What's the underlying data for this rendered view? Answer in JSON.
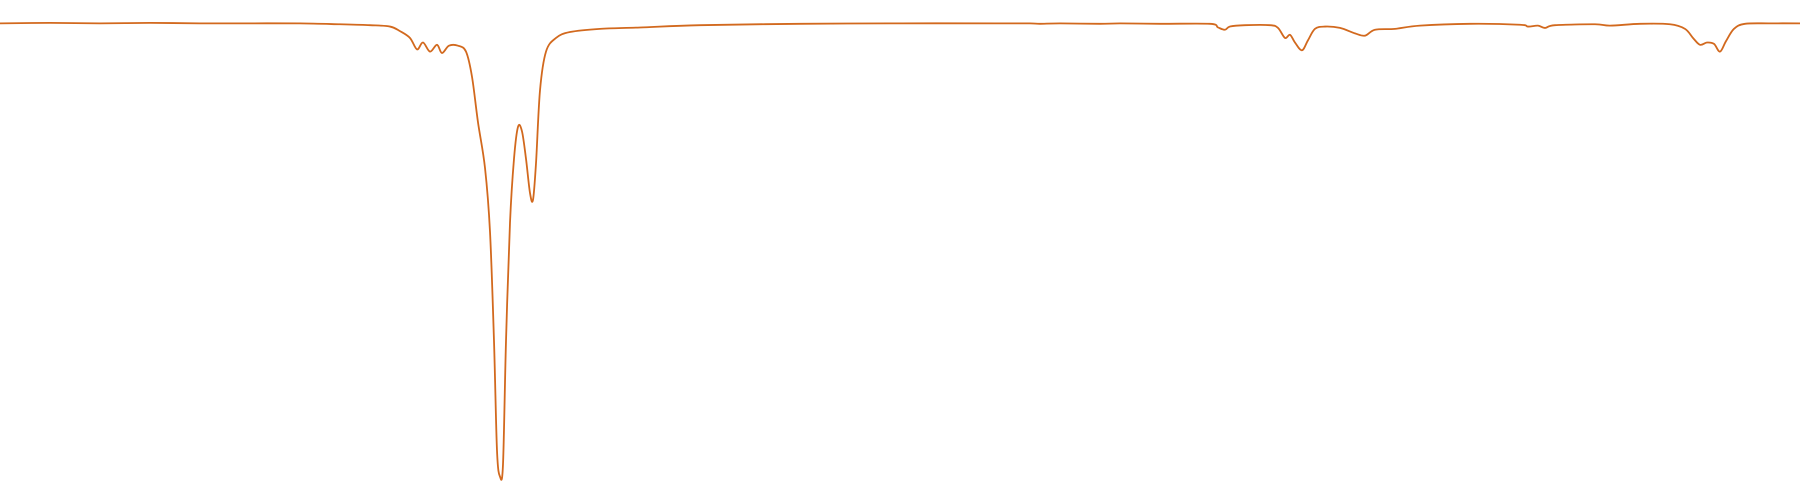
{
  "chart_data": {
    "type": "line",
    "title": "",
    "xlabel": "",
    "ylabel": "",
    "grid": false,
    "legend": "none",
    "xlim": [
      0,
      1800
    ],
    "ylim": [
      0,
      1.0
    ],
    "series": [
      {
        "color": "#d2691e",
        "points": [
          [
            0,
            0.997
          ],
          [
            50,
            0.998
          ],
          [
            100,
            0.997
          ],
          [
            150,
            0.998
          ],
          [
            200,
            0.997
          ],
          [
            250,
            0.997
          ],
          [
            300,
            0.997
          ],
          [
            340,
            0.995
          ],
          [
            370,
            0.993
          ],
          [
            390,
            0.99
          ],
          [
            400,
            0.98
          ],
          [
            410,
            0.965
          ],
          [
            417,
            0.94
          ],
          [
            423,
            0.955
          ],
          [
            430,
            0.935
          ],
          [
            437,
            0.95
          ],
          [
            442,
            0.932
          ],
          [
            449,
            0.948
          ],
          [
            458,
            0.948
          ],
          [
            466,
            0.935
          ],
          [
            472,
            0.88
          ],
          [
            478,
            0.78
          ],
          [
            485,
            0.68
          ],
          [
            490,
            0.54
          ],
          [
            494,
            0.3
          ],
          [
            497,
            0.06
          ],
          [
            500,
            0.003
          ],
          [
            503,
            0.03
          ],
          [
            506,
            0.3
          ],
          [
            510,
            0.56
          ],
          [
            514,
            0.7
          ],
          [
            518,
            0.77
          ],
          [
            522,
            0.76
          ],
          [
            526,
            0.7
          ],
          [
            530,
            0.625
          ],
          [
            533,
            0.61
          ],
          [
            536,
            0.69
          ],
          [
            540,
            0.85
          ],
          [
            546,
            0.935
          ],
          [
            556,
            0.965
          ],
          [
            570,
            0.978
          ],
          [
            600,
            0.985
          ],
          [
            640,
            0.988
          ],
          [
            700,
            0.993
          ],
          [
            800,
            0.996
          ],
          [
            900,
            0.997
          ],
          [
            1000,
            0.997
          ],
          [
            1030,
            0.997
          ],
          [
            1040,
            0.996
          ],
          [
            1060,
            0.997
          ],
          [
            1100,
            0.996
          ],
          [
            1120,
            0.997
          ],
          [
            1160,
            0.996
          ],
          [
            1210,
            0.996
          ],
          [
            1218,
            0.988
          ],
          [
            1225,
            0.983
          ],
          [
            1230,
            0.99
          ],
          [
            1245,
            0.993
          ],
          [
            1270,
            0.993
          ],
          [
            1278,
            0.987
          ],
          [
            1285,
            0.965
          ],
          [
            1290,
            0.972
          ],
          [
            1295,
            0.955
          ],
          [
            1302,
            0.938
          ],
          [
            1308,
            0.96
          ],
          [
            1315,
            0.985
          ],
          [
            1325,
            0.99
          ],
          [
            1340,
            0.987
          ],
          [
            1355,
            0.975
          ],
          [
            1365,
            0.97
          ],
          [
            1375,
            0.983
          ],
          [
            1395,
            0.985
          ],
          [
            1420,
            0.992
          ],
          [
            1470,
            0.996
          ],
          [
            1520,
            0.994
          ],
          [
            1528,
            0.99
          ],
          [
            1538,
            0.992
          ],
          [
            1545,
            0.987
          ],
          [
            1555,
            0.993
          ],
          [
            1595,
            0.995
          ],
          [
            1610,
            0.992
          ],
          [
            1640,
            0.996
          ],
          [
            1670,
            0.995
          ],
          [
            1685,
            0.985
          ],
          [
            1693,
            0.965
          ],
          [
            1700,
            0.95
          ],
          [
            1707,
            0.955
          ],
          [
            1714,
            0.952
          ],
          [
            1720,
            0.935
          ],
          [
            1726,
            0.958
          ],
          [
            1734,
            0.985
          ],
          [
            1745,
            0.996
          ],
          [
            1770,
            0.997
          ],
          [
            1800,
            0.997
          ]
        ]
      }
    ]
  }
}
